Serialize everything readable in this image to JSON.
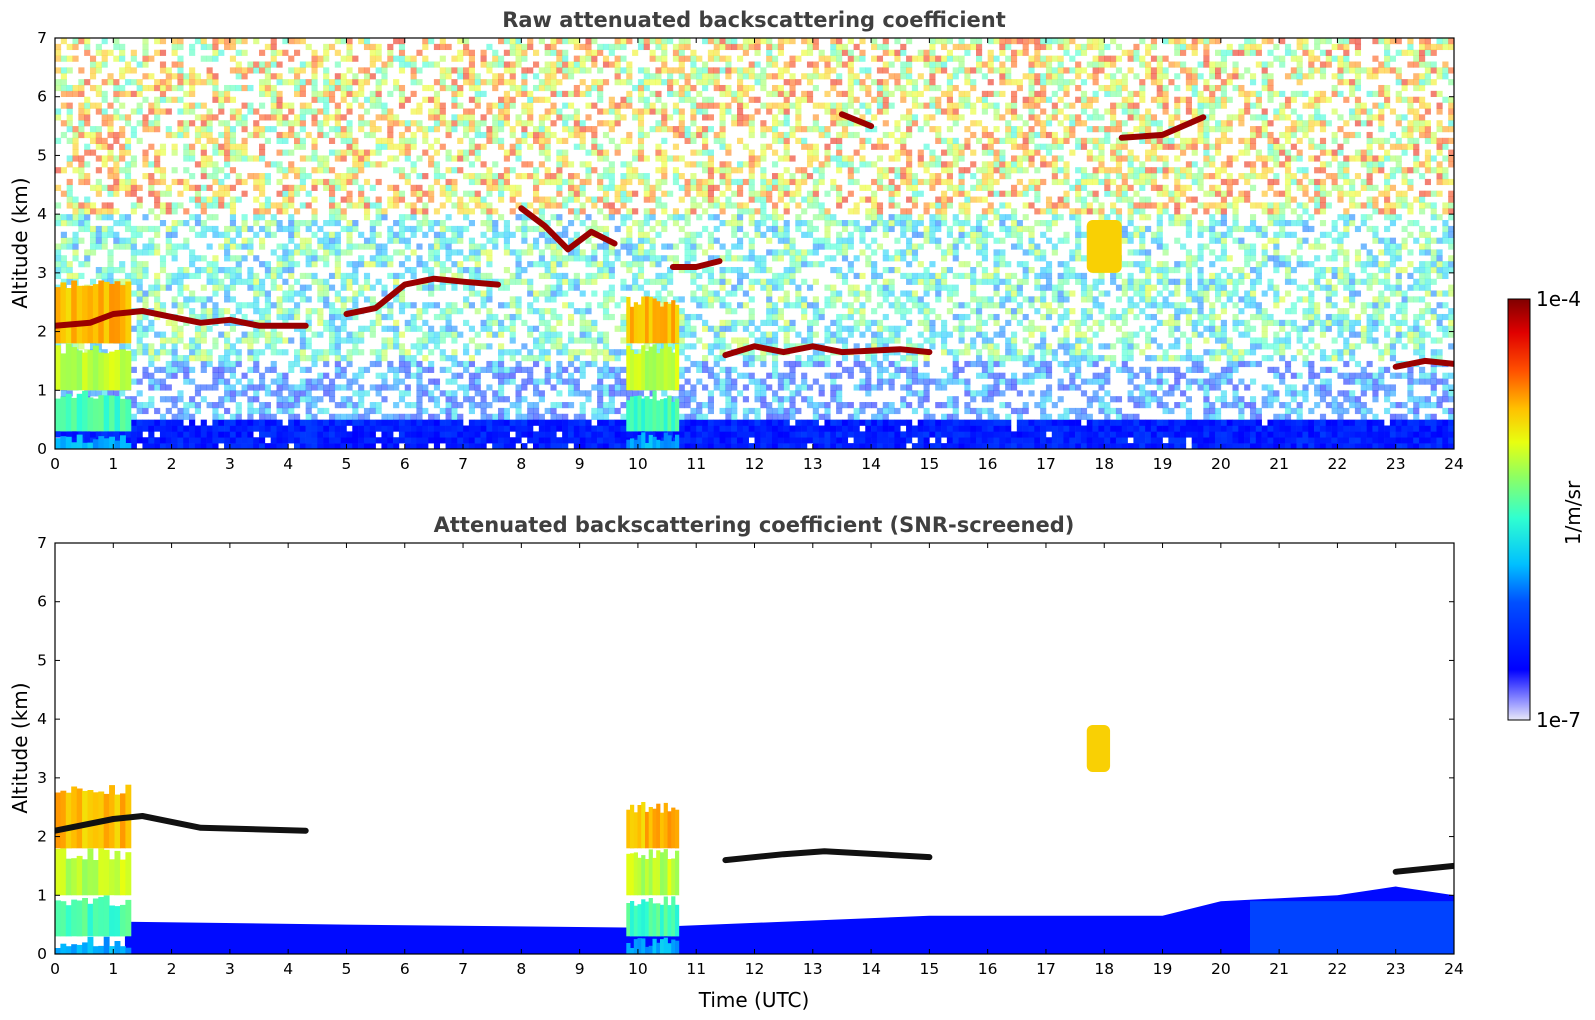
{
  "chart_data": [
    {
      "type": "heatmap",
      "title": "Raw attenuated backscattering coefficient",
      "xlabel": "",
      "ylabel": "Altitude (km)",
      "xlim": [
        0,
        24
      ],
      "ylim": [
        0,
        7
      ],
      "xticks": [
        "0",
        "1",
        "2",
        "3",
        "4",
        "5",
        "6",
        "7",
        "8",
        "9",
        "10",
        "11",
        "12",
        "13",
        "14",
        "15",
        "16",
        "17",
        "18",
        "19",
        "20",
        "21",
        "22",
        "23",
        "24"
      ],
      "yticks": [
        "0",
        "1",
        "2",
        "3",
        "4",
        "5",
        "6",
        "7"
      ],
      "features": [
        {
          "kind": "aerosol_column",
          "x": [
            0.0,
            1.3
          ],
          "y": [
            0.0,
            2.9
          ],
          "level": "cyan-orange"
        },
        {
          "kind": "aerosol_column",
          "x": [
            9.8,
            10.7
          ],
          "y": [
            0.0,
            2.6
          ],
          "level": "cyan-yellow"
        },
        {
          "kind": "cloud_layer",
          "points": [
            [
              0.0,
              2.1
            ],
            [
              0.6,
              2.15
            ],
            [
              1.0,
              2.3
            ],
            [
              1.5,
              2.35
            ],
            [
              2.0,
              2.25
            ],
            [
              2.5,
              2.15
            ],
            [
              3.0,
              2.2
            ],
            [
              3.5,
              2.1
            ],
            [
              4.3,
              2.1
            ]
          ]
        },
        {
          "kind": "cloud_layer",
          "points": [
            [
              5.0,
              2.3
            ],
            [
              5.5,
              2.4
            ],
            [
              6.0,
              2.8
            ],
            [
              6.5,
              2.9
            ],
            [
              7.0,
              2.85
            ],
            [
              7.6,
              2.8
            ]
          ]
        },
        {
          "kind": "cloud_layer",
          "points": [
            [
              8.0,
              4.1
            ],
            [
              8.4,
              3.8
            ],
            [
              8.8,
              3.4
            ],
            [
              9.2,
              3.7
            ],
            [
              9.6,
              3.5
            ]
          ]
        },
        {
          "kind": "cloud_layer",
          "points": [
            [
              10.6,
              3.1
            ],
            [
              11.0,
              3.1
            ],
            [
              11.4,
              3.2
            ]
          ]
        },
        {
          "kind": "cloud_layer",
          "points": [
            [
              11.5,
              1.6
            ],
            [
              12.0,
              1.75
            ],
            [
              12.5,
              1.65
            ],
            [
              13.0,
              1.75
            ],
            [
              13.5,
              1.65
            ],
            [
              14.5,
              1.7
            ],
            [
              15.0,
              1.65
            ]
          ]
        },
        {
          "kind": "cloud_layer",
          "points": [
            [
              13.5,
              5.7
            ],
            [
              14.0,
              5.5
            ]
          ]
        },
        {
          "kind": "cloud_layer",
          "points": [
            [
              18.3,
              5.3
            ],
            [
              19.0,
              5.35
            ],
            [
              19.7,
              5.65
            ]
          ]
        },
        {
          "kind": "cloud_layer",
          "points": [
            [
              23.0,
              1.4
            ],
            [
              23.5,
              1.5
            ],
            [
              24.0,
              1.45
            ]
          ]
        },
        {
          "kind": "aerosol_patch",
          "x": [
            17.7,
            18.3
          ],
          "y": [
            3.0,
            3.9
          ],
          "level": "yellow-orange"
        }
      ]
    },
    {
      "type": "heatmap",
      "title": "Attenuated backscattering coefficient (SNR-screened)",
      "xlabel": "Time (UTC)",
      "ylabel": "Altitude (km)",
      "xlim": [
        0,
        24
      ],
      "ylim": [
        0,
        7
      ],
      "xticks": [
        "0",
        "1",
        "2",
        "3",
        "4",
        "5",
        "6",
        "7",
        "8",
        "9",
        "10",
        "11",
        "12",
        "13",
        "14",
        "15",
        "16",
        "17",
        "18",
        "19",
        "20",
        "21",
        "22",
        "23",
        "24"
      ],
      "yticks": [
        "0",
        "1",
        "2",
        "3",
        "4",
        "5",
        "6",
        "7"
      ],
      "features": [
        {
          "kind": "boundary_layer",
          "points": [
            [
              1.2,
              0.55
            ],
            [
              5.0,
              0.5
            ],
            [
              10.0,
              0.45
            ],
            [
              15.0,
              0.65
            ],
            [
              19.0,
              0.65
            ],
            [
              20.0,
              0.9
            ],
            [
              22.0,
              1.0
            ],
            [
              23.0,
              1.15
            ],
            [
              24.0,
              1.0
            ]
          ]
        },
        {
          "kind": "aerosol_column",
          "x": [
            0.0,
            1.3
          ],
          "y": [
            0.0,
            2.9
          ],
          "level": "cyan-orange"
        },
        {
          "kind": "aerosol_column",
          "x": [
            9.8,
            10.7
          ],
          "y": [
            0.0,
            2.6
          ],
          "level": "cyan-yellow"
        },
        {
          "kind": "aerosol_patch",
          "x": [
            17.7,
            18.1
          ],
          "y": [
            3.1,
            3.9
          ],
          "level": "yellow-orange"
        },
        {
          "kind": "cloud_layer",
          "points": [
            [
              0.0,
              2.1
            ],
            [
              1.0,
              2.3
            ],
            [
              1.5,
              2.35
            ],
            [
              2.5,
              2.15
            ],
            [
              4.3,
              2.1
            ]
          ]
        },
        {
          "kind": "cloud_layer",
          "points": [
            [
              11.5,
              1.6
            ],
            [
              12.5,
              1.7
            ],
            [
              13.2,
              1.75
            ],
            [
              15.0,
              1.65
            ]
          ]
        },
        {
          "kind": "cloud_layer",
          "points": [
            [
              23.0,
              1.4
            ],
            [
              24.0,
              1.5
            ]
          ]
        }
      ]
    }
  ],
  "colorbar": {
    "min_label": "1e-7",
    "max_label": "1e-4",
    "label": "1/m/sr",
    "scale": "log",
    "colormap": "jet"
  },
  "colors": {
    "background": "#ffffff",
    "axis": "#000000",
    "title": "#3f3f3f"
  }
}
